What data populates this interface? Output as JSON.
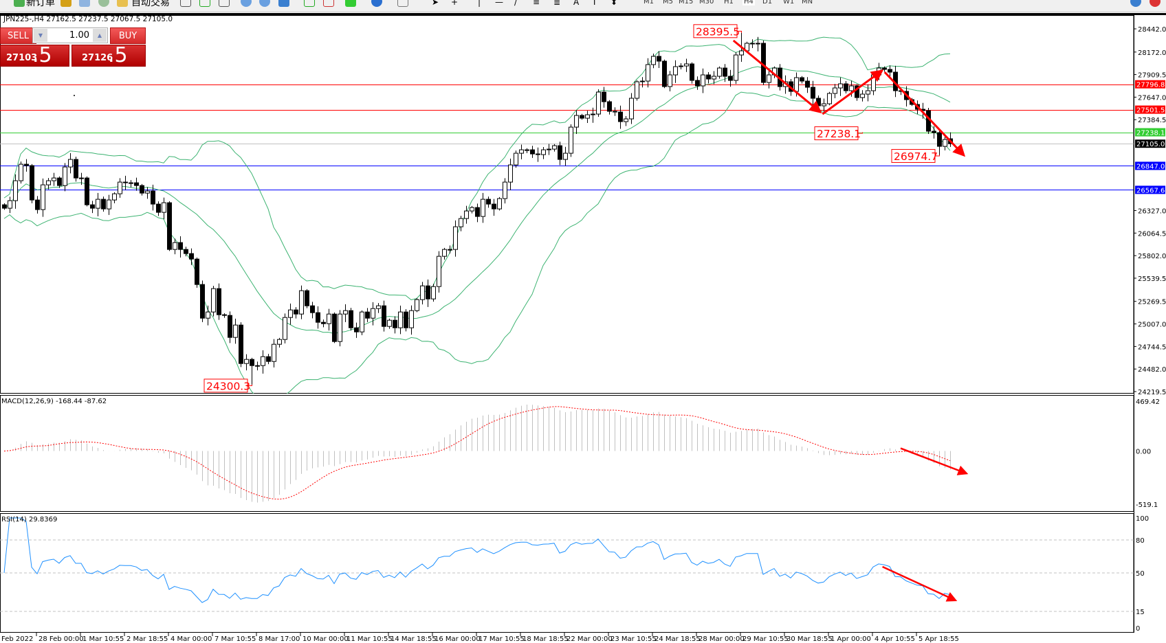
{
  "toolbar": {
    "new_order": "新订单",
    "auto_trading": "自动交易",
    "timeframes": [
      "M1",
      "M5",
      "M15",
      "M30",
      "H1",
      "H4",
      "D1",
      "W1",
      "MN"
    ],
    "active_timeframe": "H4"
  },
  "chart_title": "JPN225-,H4  27162.5 27237.5 27067.5 27105.0",
  "trade_panel": {
    "sell_label": "SELL",
    "buy_label": "BUY",
    "lot": "1.00",
    "sell_price_main": "27103",
    "sell_price_frac": ".5",
    "buy_price_main": "27126",
    "buy_price_frac": ".5"
  },
  "colors": {
    "bull_body": "#ffffff",
    "bear_body": "#000000",
    "bollinger": "#3cb371",
    "macd_hist": "#c0c0c0",
    "macd_signal": "#ff0000",
    "rsi": "#1e90ff",
    "annotation": "#ff0000"
  },
  "chart_data": {
    "type": "candlestick",
    "symbol": "JPN225-",
    "timeframe": "H4",
    "last_ohlc": [
      27162.5,
      27237.5,
      27067.5,
      27105.0
    ],
    "closes": [
      26354,
      26442,
      26674,
      26866,
      26850,
      26450,
      26338,
      26626,
      26674,
      26706,
      26618,
      26834,
      26922,
      26706,
      26706,
      26394,
      26354,
      26458,
      26346,
      26450,
      26522,
      26658,
      26650,
      26650,
      26618,
      26530,
      26554,
      26402,
      26306,
      26418,
      25874,
      25954,
      25874,
      25826,
      25762,
      25466,
      25074,
      25146,
      25418,
      25114,
      25106,
      24850,
      24994,
      24546,
      24594,
      24522,
      24522,
      24626,
      24570,
      24770,
      24826,
      25082,
      25170,
      25122,
      25394,
      25218,
      25138,
      25026,
      25010,
      25122,
      24802,
      25122,
      25162,
      24962,
      24914,
      25146,
      25074,
      25186,
      25218,
      24978,
      25050,
      24962,
      25146,
      24962,
      25162,
      25290,
      25450,
      25298,
      25442,
      25794,
      25874,
      25874,
      26138,
      26234,
      26322,
      26362,
      26258,
      26458,
      26402,
      26346,
      26466,
      26658,
      26858,
      26994,
      27034,
      27034,
      26986,
      26978,
      27034,
      27042,
      27082,
      26922,
      26994,
      27298,
      27434,
      27402,
      27442,
      27450,
      27706,
      27594,
      27482,
      27474,
      27362,
      27394,
      27634,
      27826,
      27834,
      28026,
      28122,
      28066,
      27770,
      27906,
      28002,
      28010,
      28034,
      27842,
      27778,
      27906,
      27858,
      27890,
      27986,
      27890,
      27842,
      28138,
      28186,
      28274,
      28274,
      28274,
      27818,
      27906,
      27986,
      27770,
      27826,
      27714,
      27874,
      27834,
      27762,
      27634,
      27546,
      27570,
      27690,
      27754,
      27802,
      27722,
      27778,
      27642,
      27682,
      27722,
      27906,
      27986,
      27970,
      27938,
      27722,
      27714,
      27618,
      27562,
      27506,
      27490,
      27250,
      27234,
      27074,
      27154,
      27105
    ],
    "price_axis": {
      "range": [
        24219.5,
        28442.0
      ],
      "ticks": [
        "28442.0",
        "28172.0",
        "27909.5",
        "27647.0",
        "27384.5",
        "26327.0",
        "26064.5",
        "25802.0",
        "25539.5",
        "25269.5",
        "25007.0",
        "24744.5",
        "24482.0",
        "24219.5"
      ]
    },
    "time_axis": {
      "first_label": "Feb 2022",
      "labels": [
        "28 Feb 00:00",
        "1 Mar 10:55",
        "2 Mar 18:55",
        "4 Mar 00:00",
        "7 Mar 10:55",
        "8 Mar 17:00",
        "10 Mar 00:00",
        "11 Mar 10:55",
        "14 Mar 18:55",
        "16 Mar 00:00",
        "17 Mar 10:55",
        "18 Mar 18:55",
        "22 Mar 00:00",
        "23 Mar 10:55",
        "24 Mar 18:55",
        "28 Mar 00:00",
        "29 Mar 10:55",
        "30 Mar 18:55",
        "1 Apr 00:00",
        "4 Apr 10:55",
        "5 Apr 18:55"
      ]
    },
    "horizontal_lines": [
      {
        "price": 27796.8,
        "label": "27796.8",
        "color": "#ff0000"
      },
      {
        "price": 27501.5,
        "label": "27501.5",
        "color": "#ff0000"
      },
      {
        "price": 27238.1,
        "label": "27238.1",
        "color": "#32cd32"
      },
      {
        "price": 27105.0,
        "label": "27105.0",
        "color": "#000000",
        "line_color": "#c0c0c0"
      },
      {
        "price": 26847.0,
        "label": "26847.0",
        "color": "#0000ff"
      },
      {
        "price": 26567.6,
        "label": "26567.6",
        "color": "#0000ff"
      }
    ],
    "price_labels": [
      {
        "text": "28395.5",
        "bar": 134,
        "price": 28395.5,
        "kind": "high"
      },
      {
        "text": "24300.3",
        "bar": 45,
        "price": 24300.3,
        "kind": "low"
      },
      {
        "text": "27238.1",
        "bar": 156,
        "price": 27238.1,
        "kind": "line"
      },
      {
        "text": "26974.7",
        "bar": 170,
        "price": 26974.7,
        "kind": "low"
      }
    ],
    "trend_arrows": [
      {
        "from": [
          132.6,
          28306
        ],
        "to": [
          148.4,
          27474
        ]
      },
      {
        "from": [
          148.8,
          27450
        ],
        "to": [
          159.6,
          27954
        ]
      },
      {
        "from": [
          160.1,
          27938
        ],
        "to": [
          174.5,
          26970
        ]
      }
    ],
    "bollinger": {
      "period": 20,
      "deviation": 2
    },
    "macd": {
      "label": "MACD(12,26,9) -168.44 -87.62",
      "params": [
        12,
        26,
        9
      ],
      "range": [
        -519.1,
        469.42
      ],
      "ticks": [
        "469.42",
        "0.00",
        "-519.1"
      ],
      "arrow": {
        "from": [
          163,
          25
        ],
        "to": [
          175,
          -206
        ]
      }
    },
    "rsi": {
      "label": "RSI(14) 29.8369",
      "period": 14,
      "range": [
        0,
        100
      ],
      "levels": [
        80,
        50,
        15
      ],
      "ticks": [
        "100",
        "80",
        "50",
        "15",
        "0"
      ],
      "arrow": {
        "from": [
          159.7,
          55.6
        ],
        "to": [
          173,
          25
        ]
      }
    }
  }
}
